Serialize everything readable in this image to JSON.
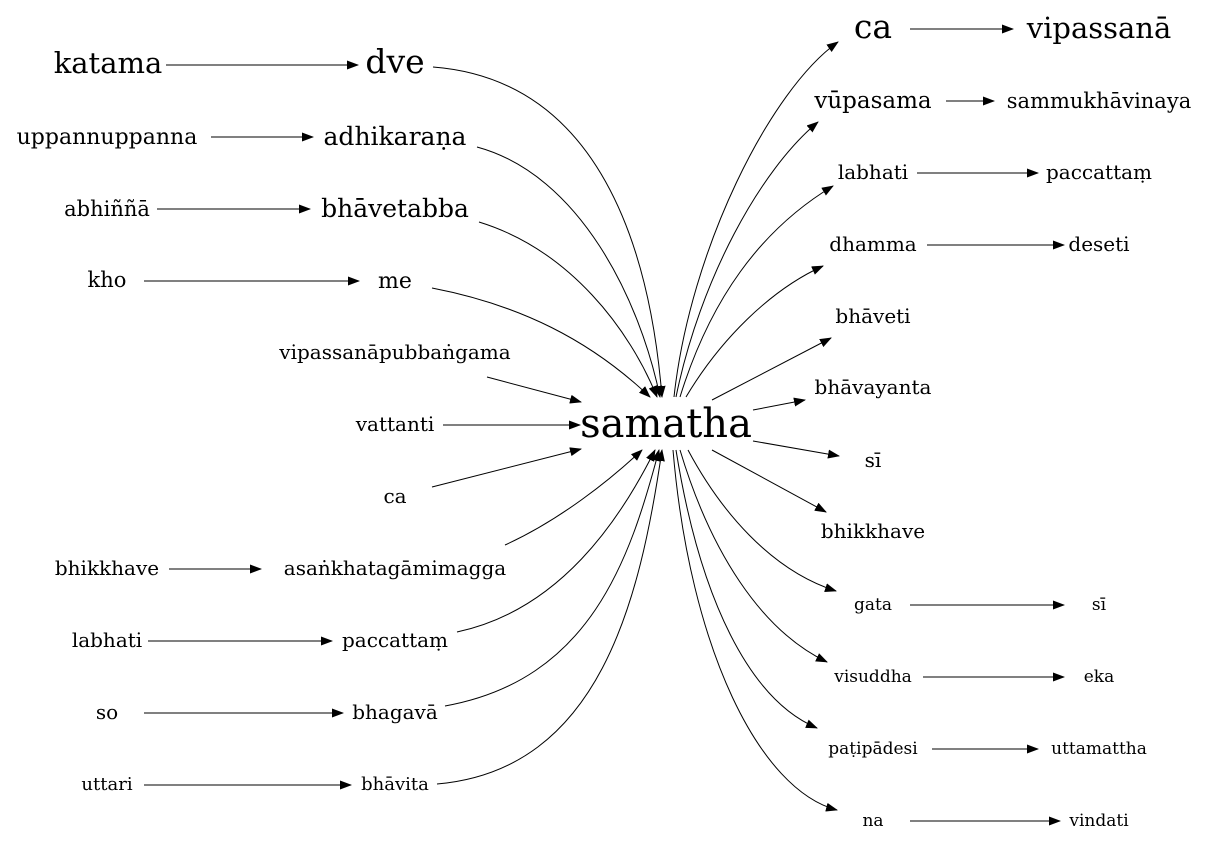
{
  "center": "samatha",
  "left_nodes": [
    {
      "id": "katama",
      "label": "katama",
      "target": "dve"
    },
    {
      "id": "dve",
      "label": "dve",
      "target": "samatha"
    },
    {
      "id": "uppannuppanna",
      "label": "uppannuppanna",
      "target": "adhikarana"
    },
    {
      "id": "adhikarana",
      "label": "adhikaraṇa",
      "target": "samatha"
    },
    {
      "id": "abhinna",
      "label": "abhiññā",
      "target": "bhavetabba"
    },
    {
      "id": "bhavetabba",
      "label": "bhāvetabba",
      "target": "samatha"
    },
    {
      "id": "kho",
      "label": "kho",
      "target": "me"
    },
    {
      "id": "me",
      "label": "me",
      "target": "samatha"
    },
    {
      "id": "vipassanapubbangama",
      "label": "vipassanāpubbaṅgama",
      "target": "samatha"
    },
    {
      "id": "vattanti",
      "label": "vattanti",
      "target": "samatha"
    },
    {
      "id": "ca_left",
      "label": "ca",
      "target": "samatha"
    },
    {
      "id": "bhikkhave_left",
      "label": "bhikkhave",
      "target": "asankhatagamimagga"
    },
    {
      "id": "asankhatagamimagga",
      "label": "asaṅkhatagāmimagga",
      "target": "samatha"
    },
    {
      "id": "labhati_left",
      "label": "labhati",
      "target": "paccattam_left"
    },
    {
      "id": "paccattam_left",
      "label": "paccattaṃ",
      "target": "samatha"
    },
    {
      "id": "so",
      "label": "so",
      "target": "bhagava"
    },
    {
      "id": "bhagava",
      "label": "bhagavā",
      "target": "samatha"
    },
    {
      "id": "uttari",
      "label": "uttari",
      "target": "bhavita"
    },
    {
      "id": "bhavita",
      "label": "bhāvita",
      "target": "samatha"
    }
  ],
  "right_nodes": [
    {
      "id": "ca_right",
      "label": "ca",
      "source": "samatha"
    },
    {
      "id": "vipassana",
      "label": "vipassanā",
      "source": "ca_right"
    },
    {
      "id": "vupasama",
      "label": "vūpasama",
      "source": "samatha"
    },
    {
      "id": "sammukhavinaya",
      "label": "sammukhāvinaya",
      "source": "vupasama"
    },
    {
      "id": "labhati_right",
      "label": "labhati",
      "source": "samatha"
    },
    {
      "id": "paccattam_right",
      "label": "paccattaṃ",
      "source": "labhati_right"
    },
    {
      "id": "dhamma",
      "label": "dhamma",
      "source": "samatha"
    },
    {
      "id": "deseti",
      "label": "deseti",
      "source": "dhamma"
    },
    {
      "id": "bhaveti",
      "label": "bhāveti",
      "source": "samatha"
    },
    {
      "id": "bhavayanta",
      "label": "bhāvayanta",
      "source": "samatha"
    },
    {
      "id": "si_1",
      "label": "sī",
      "source": "samatha"
    },
    {
      "id": "bhikkhave_right",
      "label": "bhikkhave",
      "source": "samatha"
    },
    {
      "id": "gata",
      "label": "gata",
      "source": "samatha"
    },
    {
      "id": "si_2",
      "label": "sī",
      "source": "gata"
    },
    {
      "id": "visuddha",
      "label": "visuddha",
      "source": "samatha"
    },
    {
      "id": "eka",
      "label": "eka",
      "source": "visuddha"
    },
    {
      "id": "patipadesi",
      "label": "paṭipādesi",
      "source": "samatha"
    },
    {
      "id": "uttamattha",
      "label": "uttamattha",
      "source": "patipadesi"
    },
    {
      "id": "na",
      "label": "na",
      "source": "samatha"
    },
    {
      "id": "vindati",
      "label": "vindati",
      "source": "na"
    }
  ]
}
